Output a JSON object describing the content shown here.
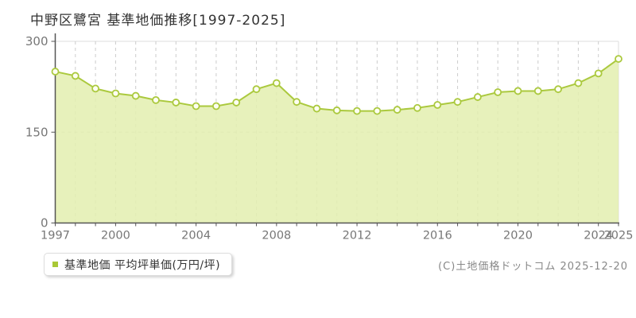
{
  "header": {
    "title": "中野区鷺宮 基準地価推移[1997-2025]"
  },
  "chart_data": {
    "type": "area",
    "title": "中野区鷺宮 基準地価推移[1997-2025]",
    "series_name": "基準地価 平均坪単価(万円/坪)",
    "unit": "万円/坪",
    "x_range": [
      1997,
      2025
    ],
    "x": [
      1997,
      1998,
      1999,
      2000,
      2001,
      2002,
      2003,
      2004,
      2005,
      2006,
      2007,
      2008,
      2009,
      2010,
      2011,
      2012,
      2013,
      2014,
      2015,
      2016,
      2017,
      2018,
      2019,
      2020,
      2021,
      2022,
      2023,
      2024,
      2025
    ],
    "values": [
      250,
      243,
      222,
      214,
      210,
      203,
      199,
      193,
      193,
      199,
      221,
      231,
      200,
      189,
      186,
      185,
      185,
      187,
      190,
      195,
      200,
      208,
      216,
      218,
      218,
      221,
      231,
      247,
      271
    ],
    "ylim": [
      0,
      300
    ],
    "yticks": [
      0,
      150,
      300
    ],
    "xticks_labeled": [
      1997,
      2000,
      2004,
      2008,
      2012,
      2016,
      2020,
      2024,
      2025
    ],
    "grid": "dashed vertical line per year, dashed horizontal line at 150",
    "legend_position": "bottom-left",
    "colors": {
      "line": "#abc93e",
      "fill": "#e3efaf",
      "point_fill": "#fdfef2",
      "grid": "#cccccc",
      "axis": "#555555",
      "border": "#dedede",
      "tick_label": "#777777"
    }
  },
  "legend": {
    "label": "基準地価 平均坪単価(万円/坪)",
    "marker_color": "#a9c837"
  },
  "footer": {
    "copyright": "(C)土地価格ドットコム 2025-12-20"
  }
}
